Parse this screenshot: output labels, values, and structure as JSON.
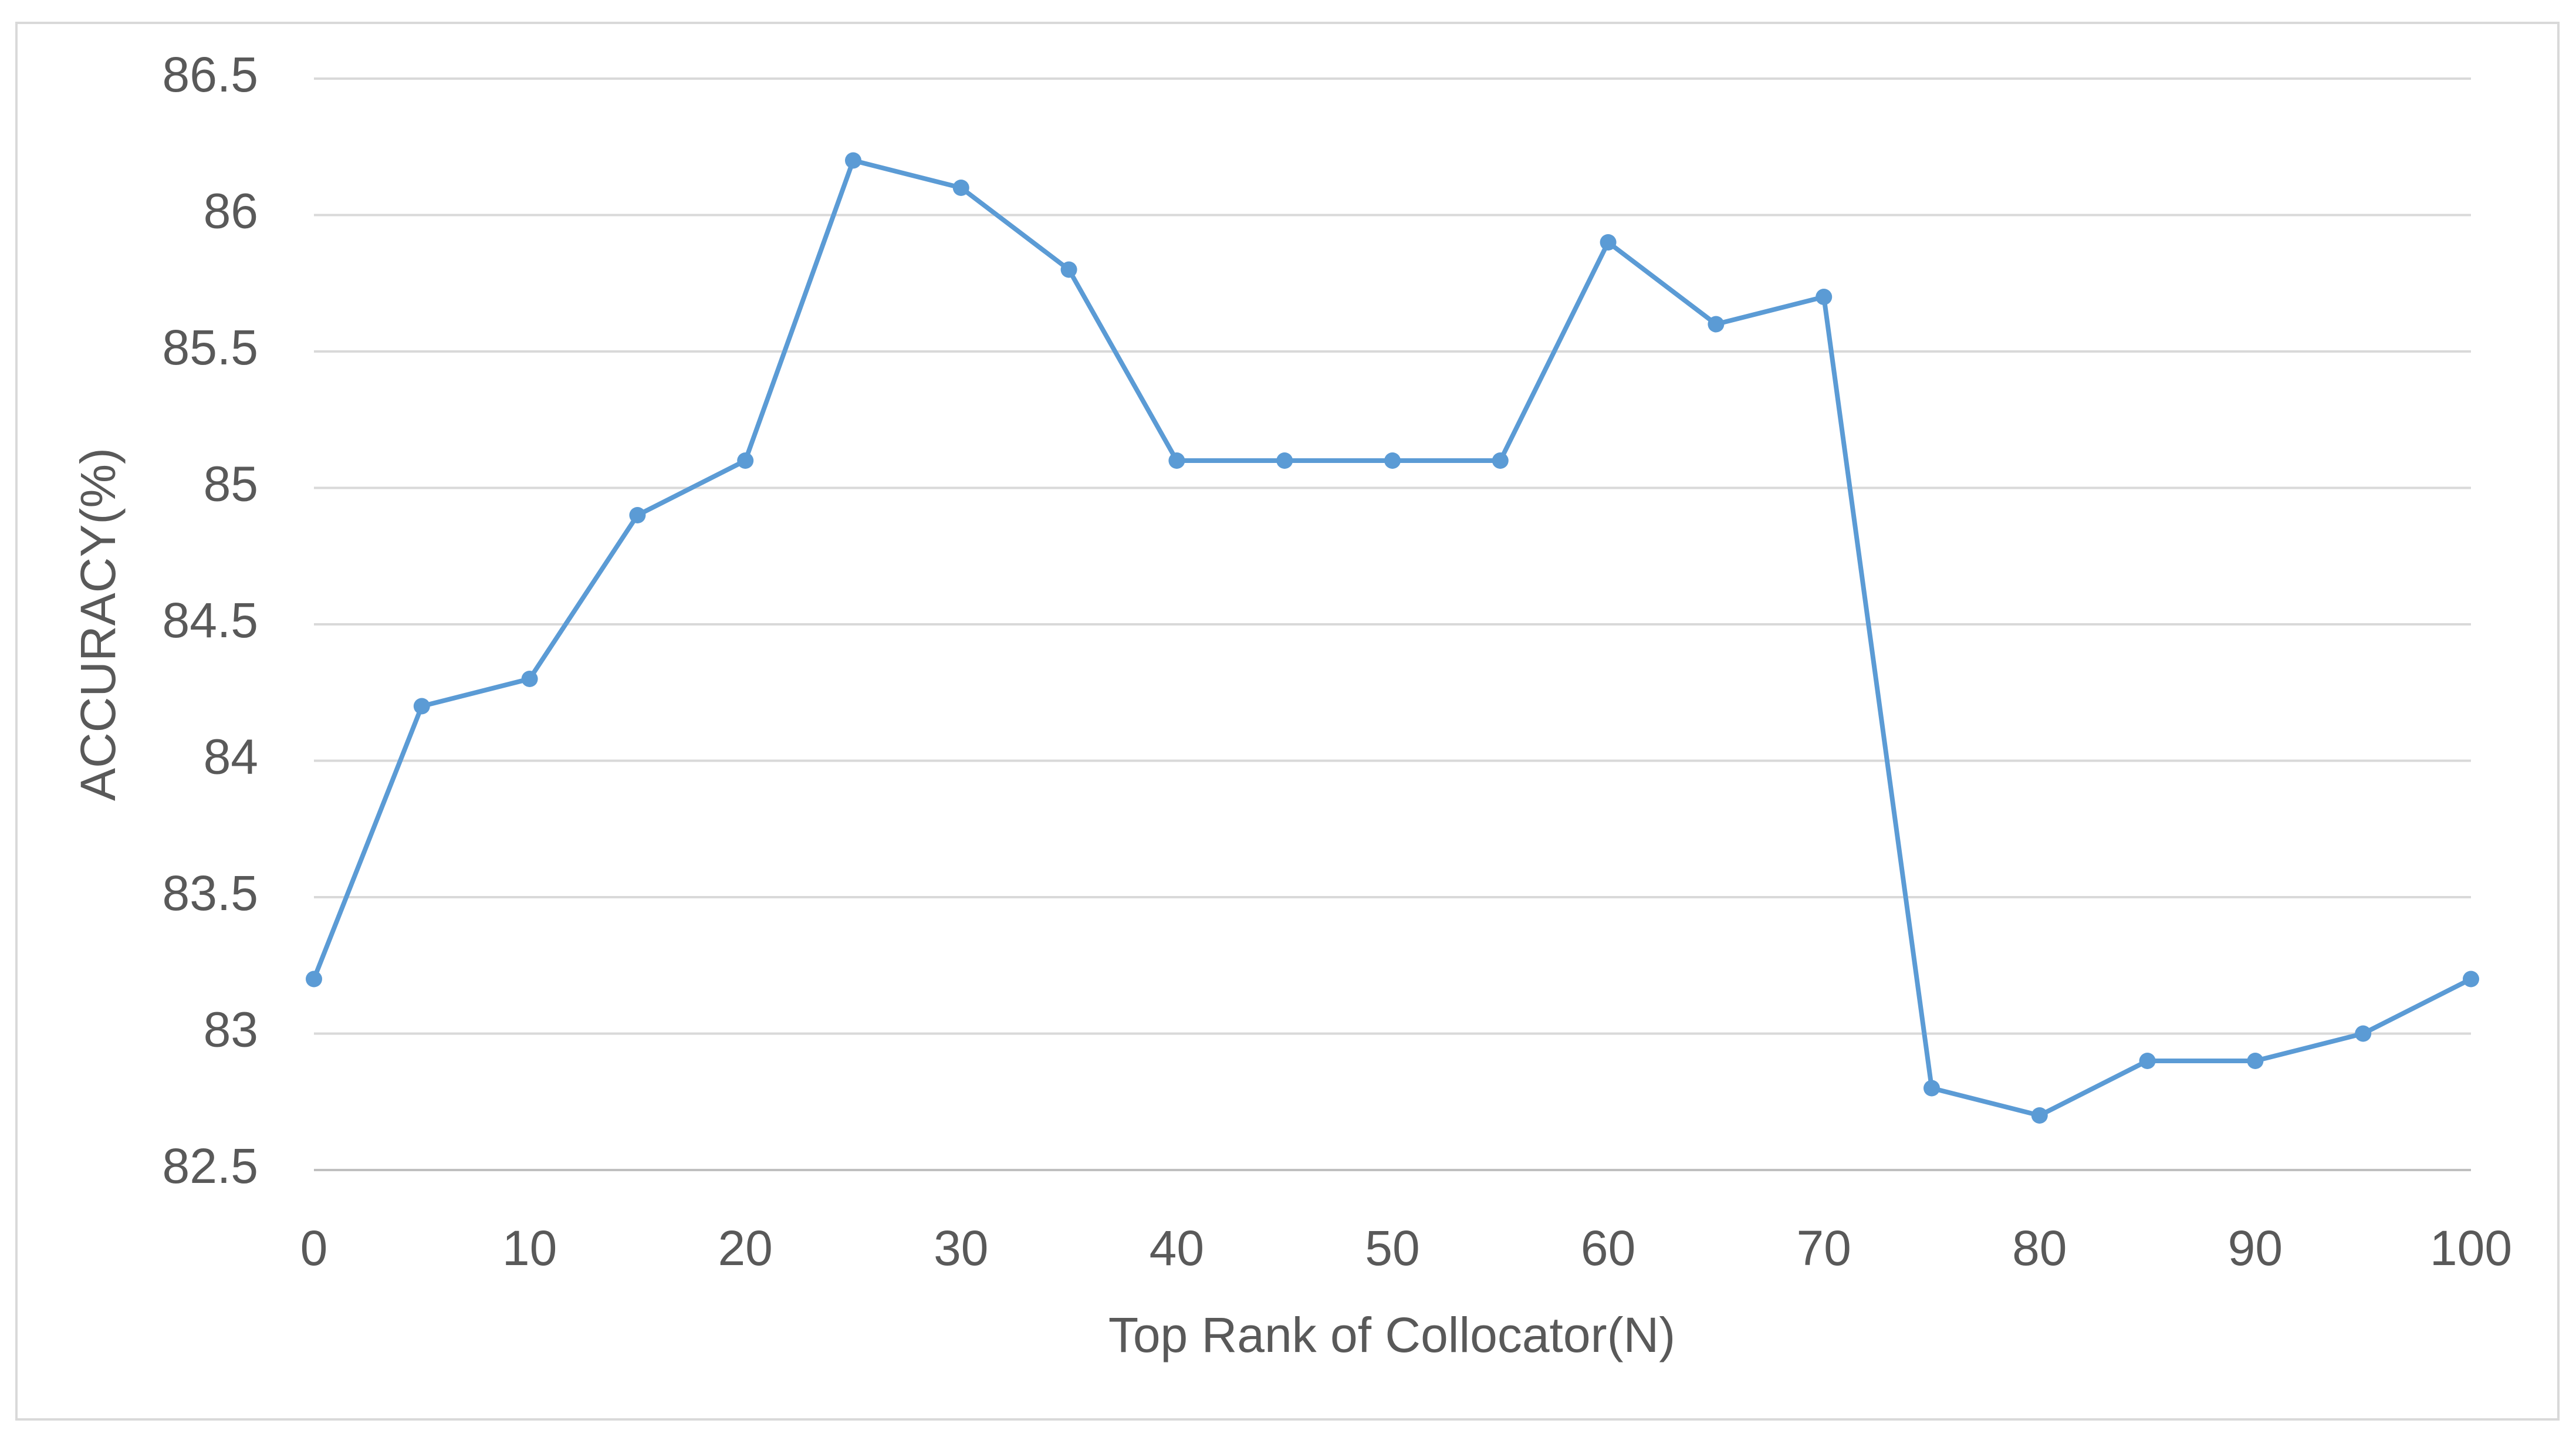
{
  "chart_data": {
    "type": "line",
    "x_label": "Top Rank of Collocator(N)",
    "y_label": "ACCURACY(%)",
    "x": [
      0,
      5,
      10,
      15,
      20,
      25,
      30,
      35,
      40,
      45,
      50,
      55,
      60,
      65,
      70,
      75,
      80,
      85,
      90,
      95,
      100
    ],
    "series": [
      {
        "color": "#5b9bd5",
        "values": [
          83.2,
          84.2,
          84.3,
          84.9,
          85.1,
          86.2,
          86.1,
          85.8,
          85.1,
          85.1,
          85.1,
          85.1,
          85.9,
          85.6,
          85.7,
          82.8,
          82.7,
          82.9,
          82.9,
          83.0,
          83.2
        ]
      }
    ],
    "xlim": [
      0,
      100
    ],
    "xticks": [
      0,
      10,
      20,
      30,
      40,
      50,
      60,
      70,
      80,
      90,
      100
    ],
    "ylim": [
      82.5,
      86.5
    ],
    "yticks": [
      82.5,
      83,
      83.5,
      84,
      84.5,
      85,
      85.5,
      86,
      86.5
    ],
    "grid": true
  }
}
